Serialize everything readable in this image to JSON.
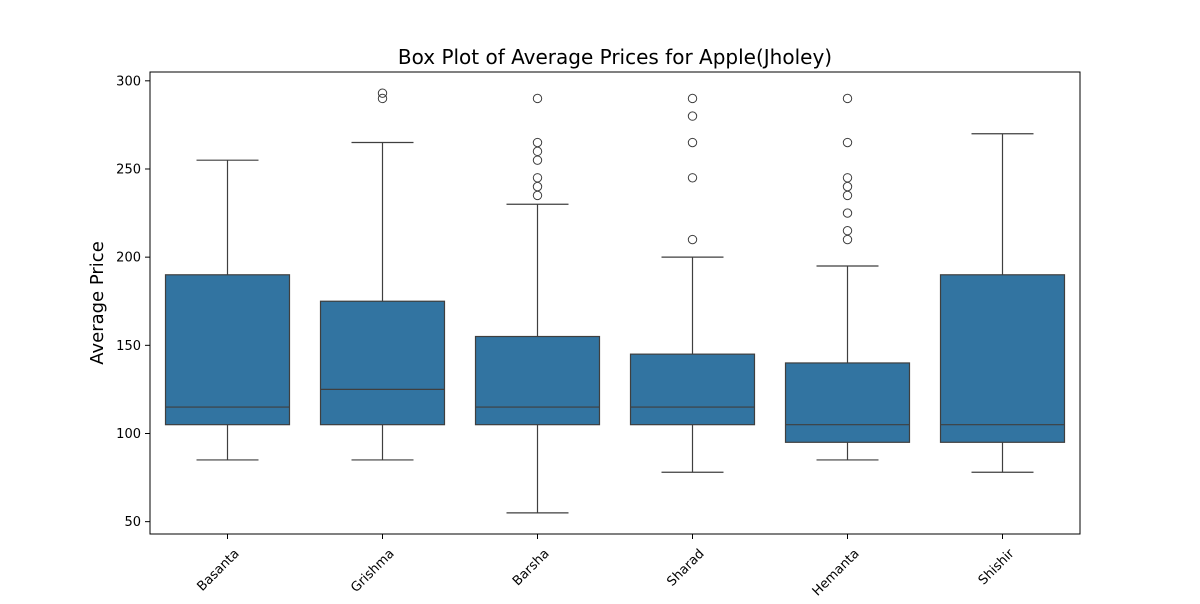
{
  "chart_data": {
    "type": "box",
    "title": "Box Plot of Average Prices for Apple(Jholey)",
    "xlabel": "",
    "ylabel": "Average Price",
    "ylim": [
      43,
      305
    ],
    "yticks": [
      50,
      100,
      150,
      200,
      250,
      300
    ],
    "grid": false,
    "legend": "none",
    "box_color": "#3274a1",
    "line_color": "#3f3f3f",
    "categories": [
      "Basanta",
      "Grishma",
      "Barsha",
      "Sharad",
      "Hemanta",
      "Shishir"
    ],
    "boxes": [
      {
        "category": "Basanta",
        "whisker_low": 85,
        "q1": 105,
        "median": 115,
        "q3": 190,
        "whisker_high": 255,
        "outliers": []
      },
      {
        "category": "Grishma",
        "whisker_low": 85,
        "q1": 105,
        "median": 125,
        "q3": 175,
        "whisker_high": 265,
        "outliers": [
          290,
          293
        ]
      },
      {
        "category": "Barsha",
        "whisker_low": 55,
        "q1": 105,
        "median": 115,
        "q3": 155,
        "whisker_high": 230,
        "outliers": [
          235,
          240,
          245,
          255,
          260,
          265,
          290
        ]
      },
      {
        "category": "Sharad",
        "whisker_low": 78,
        "q1": 105,
        "median": 115,
        "q3": 145,
        "whisker_high": 200,
        "outliers": [
          210,
          245,
          265,
          280,
          290
        ]
      },
      {
        "category": "Hemanta",
        "whisker_low": 85,
        "q1": 95,
        "median": 105,
        "q3": 140,
        "whisker_high": 195,
        "outliers": [
          210,
          215,
          225,
          235,
          240,
          245,
          265,
          290
        ]
      },
      {
        "category": "Shishir",
        "whisker_low": 78,
        "q1": 95,
        "median": 105,
        "q3": 190,
        "whisker_high": 270,
        "outliers": []
      }
    ]
  }
}
